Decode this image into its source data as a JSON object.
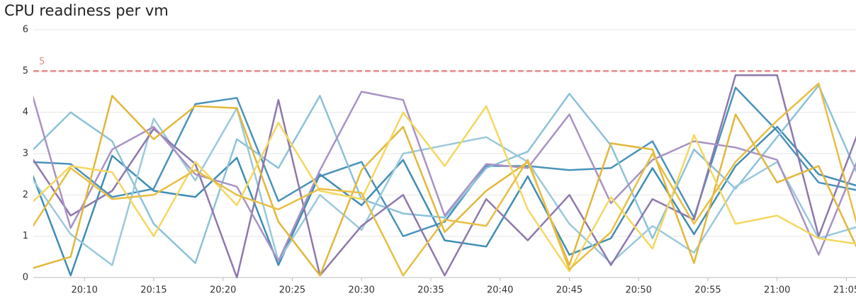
{
  "chart_data": {
    "type": "line",
    "title": "CPU readiness per vm",
    "x": [
      "20:06",
      "20:09",
      "20:12",
      "20:15",
      "20:18",
      "20:21",
      "20:24",
      "20:27",
      "20:30",
      "20:33",
      "20:36",
      "20:39",
      "20:42",
      "20:45",
      "20:48",
      "20:51",
      "20:54",
      "20:57",
      "21:00",
      "21:03",
      "21:06"
    ],
    "xlim": [
      "20:06",
      "21:06"
    ],
    "xticks": [
      "20:10",
      "20:15",
      "20:20",
      "20:25",
      "20:30",
      "20:35",
      "20:40",
      "20:45",
      "20:50",
      "20:55",
      "21:00",
      "21:05"
    ],
    "ylim": [
      0,
      6
    ],
    "yticks": [
      0,
      1,
      2,
      3,
      4,
      5,
      6
    ],
    "grid": true,
    "threshold": {
      "value": 5,
      "color": "#e88a8a"
    },
    "series": [
      {
        "color": "#4a93bb",
        "values": [
          2.8,
          2.75,
          1.95,
          2.15,
          4.2,
          4.35,
          1.85,
          2.45,
          2.8,
          1.0,
          1.35,
          2.7,
          2.7,
          2.6,
          2.65,
          3.3,
          1.45,
          4.6,
          3.55,
          2.3,
          2.1
        ]
      },
      {
        "color": "#3f8db4",
        "values": [
          2.7,
          0.05,
          2.95,
          2.1,
          1.95,
          2.9,
          0.3,
          2.5,
          1.75,
          2.85,
          0.9,
          0.75,
          2.45,
          0.55,
          0.95,
          2.65,
          1.05,
          2.7,
          3.65,
          2.5,
          2.2
        ]
      },
      {
        "color": "#8cc2d8",
        "values": [
          3.0,
          4.0,
          3.3,
          1.3,
          0.35,
          3.35,
          2.65,
          4.4,
          1.9,
          1.55,
          1.45,
          2.65,
          3.05,
          4.45,
          3.2,
          0.95,
          3.1,
          2.15,
          3.4,
          4.65,
          2.35
        ]
      },
      {
        "color": "#9ac9dc",
        "values": [
          2.5,
          1.05,
          0.3,
          3.85,
          2.35,
          4.1,
          0.4,
          2.0,
          1.15,
          3.0,
          3.2,
          3.4,
          2.8,
          1.3,
          0.35,
          1.25,
          0.6,
          2.2,
          2.8,
          0.95,
          1.25
        ]
      },
      {
        "color": "#8e78ad",
        "values": [
          3.0,
          1.5,
          2.1,
          3.6,
          2.75,
          0.0,
          4.3,
          0.05,
          1.25,
          2.0,
          0.05,
          1.9,
          0.9,
          2.0,
          0.3,
          1.9,
          1.4,
          4.9,
          4.9,
          1.0,
          3.65
        ]
      },
      {
        "color": "#a892c4",
        "values": [
          4.7,
          1.2,
          3.1,
          3.65,
          2.5,
          2.2,
          0.4,
          2.6,
          4.5,
          4.3,
          1.5,
          2.75,
          2.65,
          3.95,
          1.8,
          2.85,
          3.3,
          3.15,
          2.85,
          0.55,
          3.0
        ]
      },
      {
        "color": "#e2b73a",
        "values": [
          0.2,
          0.5,
          4.4,
          3.35,
          4.15,
          4.1,
          1.35,
          0.05,
          2.6,
          3.65,
          1.1,
          2.1,
          2.8,
          0.3,
          3.25,
          3.1,
          0.35,
          3.95,
          2.3,
          2.7,
          0.55
        ]
      },
      {
        "color": "#f5d75e",
        "values": [
          1.75,
          2.7,
          2.55,
          1.0,
          2.8,
          1.75,
          3.75,
          2.1,
          1.9,
          4.0,
          2.7,
          4.15,
          1.65,
          0.15,
          1.95,
          0.7,
          3.45,
          1.3,
          1.5,
          0.95,
          0.8
        ]
      },
      {
        "color": "#e8be43",
        "values": [
          1.1,
          2.65,
          1.9,
          2.0,
          2.6,
          2.0,
          1.65,
          2.15,
          2.05,
          0.05,
          1.4,
          1.25,
          2.85,
          0.2,
          1.1,
          3.0,
          1.3,
          2.8,
          3.8,
          4.7,
          1.0
        ]
      }
    ]
  }
}
